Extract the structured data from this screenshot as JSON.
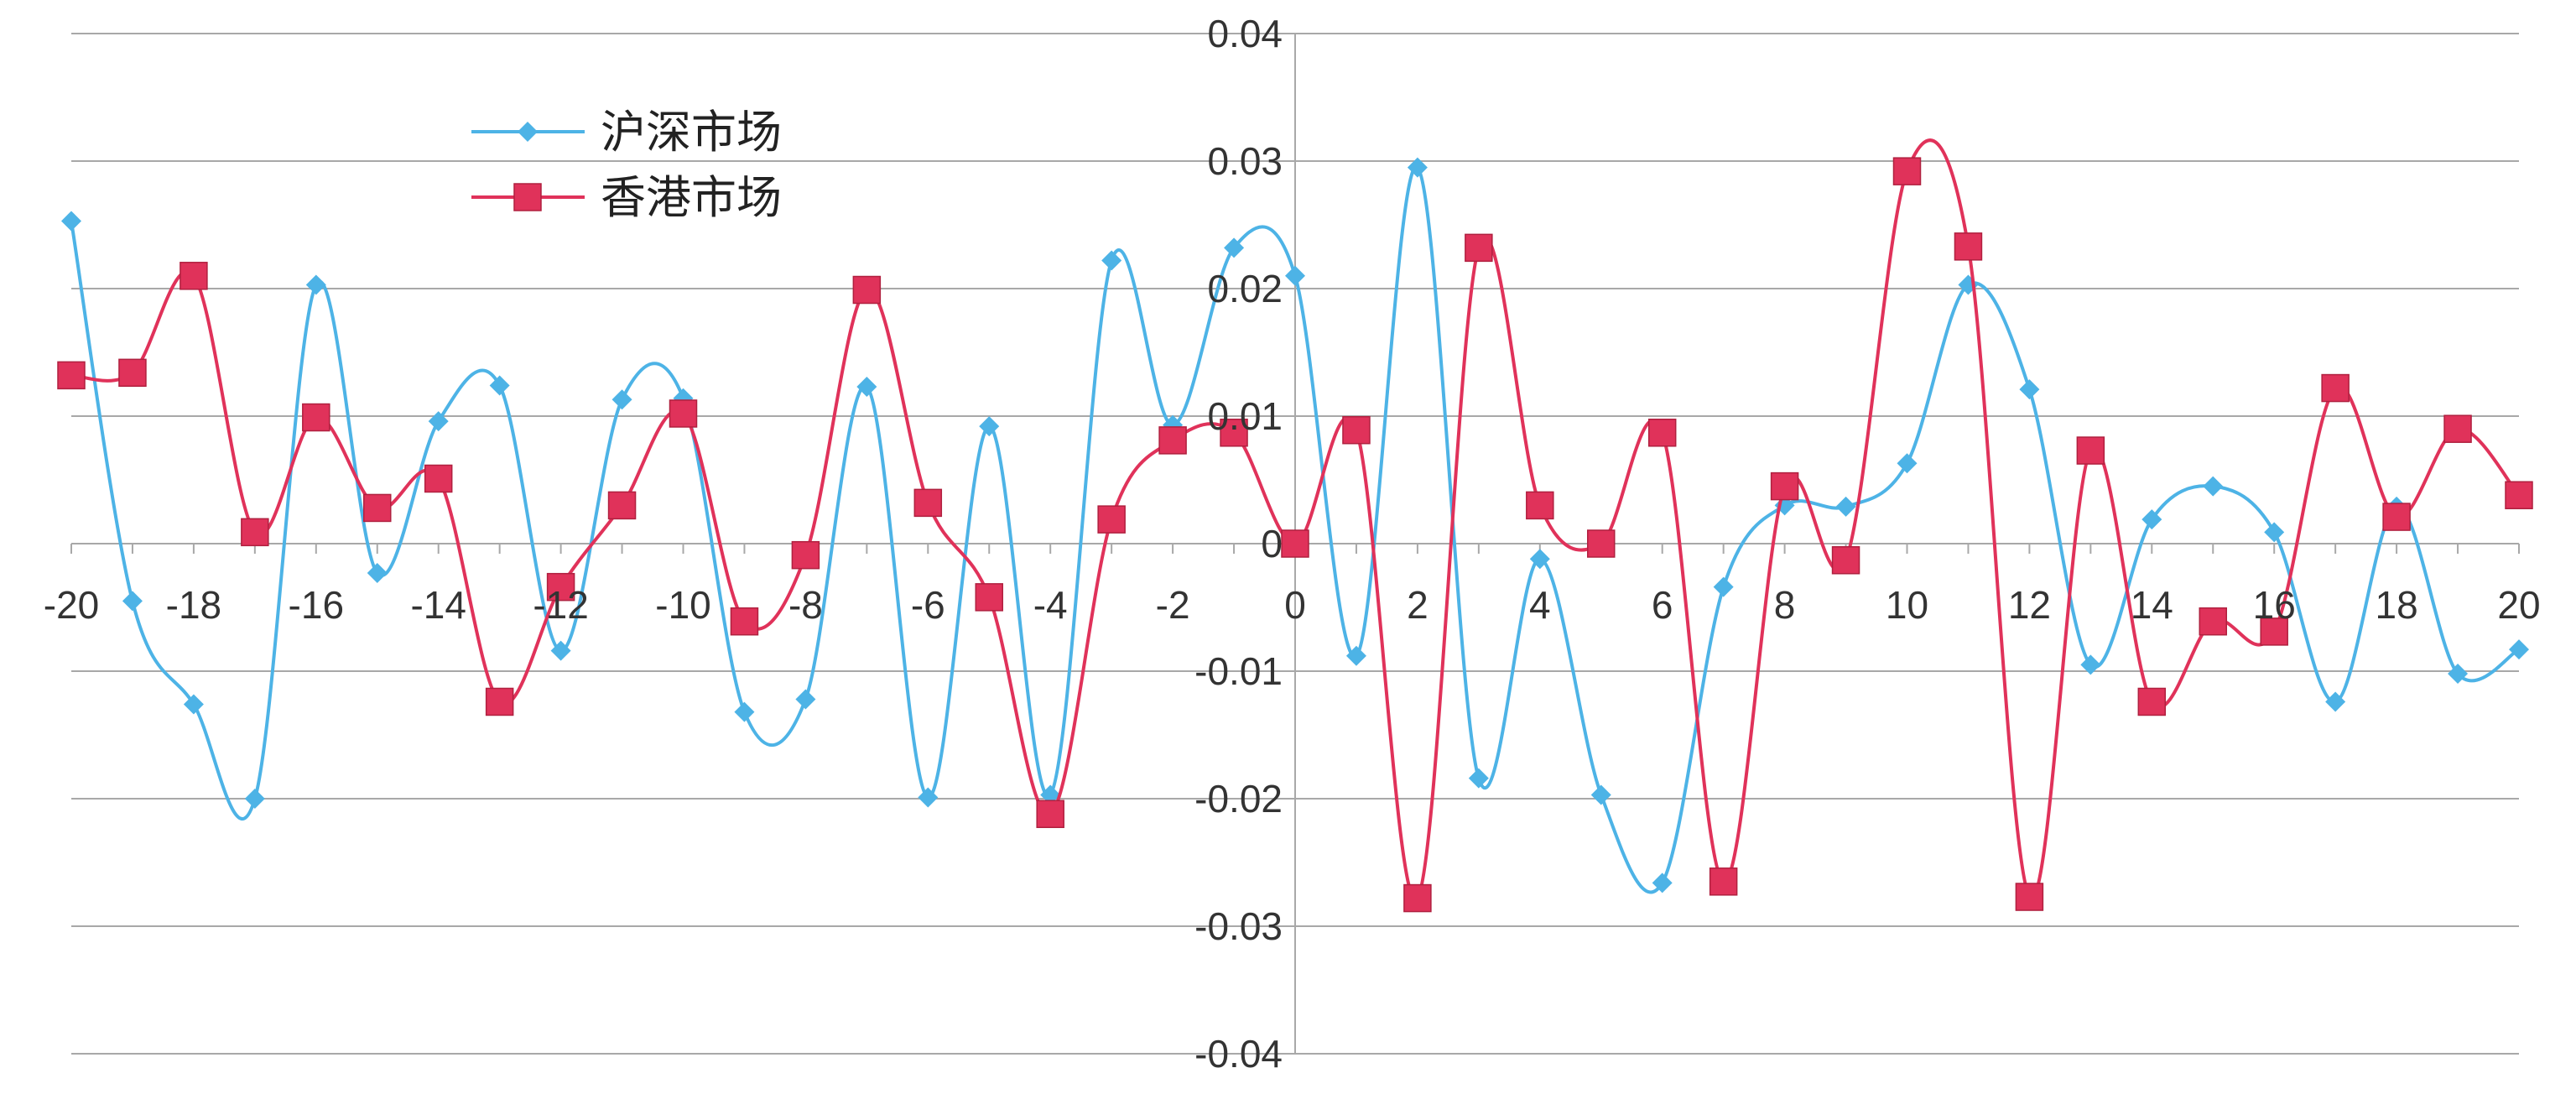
{
  "chart_data": {
    "type": "line",
    "title": "",
    "xlabel": "",
    "ylabel": "",
    "xlim": [
      -20,
      20
    ],
    "ylim": [
      -0.04,
      0.04
    ],
    "x_ticks": [
      "-20",
      "-18",
      "-16",
      "-14",
      "-12",
      "-10",
      "-8",
      "-6",
      "-4",
      "-2",
      "0",
      "2",
      "4",
      "6",
      "8",
      "10",
      "12",
      "14",
      "16",
      "18",
      "20"
    ],
    "y_ticks": [
      "-0.04",
      "-0.03",
      "-0.02",
      "-0.01",
      "0",
      "0.01",
      "0.02",
      "0.03",
      "0.04"
    ],
    "grid": "horizontal",
    "legend_position": "top-left",
    "x": [
      -20,
      -19,
      -18,
      -17,
      -16,
      -15,
      -14,
      -13,
      -12,
      -11,
      -10,
      -9,
      -8,
      -7,
      -6,
      -5,
      -4,
      -3,
      -2,
      -1,
      0,
      1,
      2,
      3,
      4,
      5,
      6,
      7,
      8,
      9,
      10,
      11,
      12,
      13,
      14,
      15,
      16,
      17,
      18,
      19,
      20
    ],
    "series": [
      {
        "name": "沪深市场",
        "color": "#4db3e6",
        "marker": "diamond",
        "values": [
          0.0253,
          -0.0045,
          -0.0126,
          -0.02,
          0.0203,
          -0.0023,
          0.0096,
          0.0124,
          -0.0084,
          0.0113,
          0.0114,
          -0.0132,
          -0.0122,
          0.0123,
          -0.0199,
          0.0092,
          -0.0197,
          0.0222,
          0.0093,
          0.0232,
          0.021,
          -0.0088,
          0.0295,
          -0.0184,
          -0.0012,
          -0.0197,
          -0.0266,
          -0.0034,
          0.003,
          0.0029,
          0.0063,
          0.0203,
          0.0121,
          -0.0095,
          0.0019,
          0.0045,
          0.0009,
          -0.0124,
          0.0029,
          -0.0102,
          -0.0083
        ]
      },
      {
        "name": "香港市场",
        "color": "#e0325a",
        "marker": "square",
        "values": [
          0.0132,
          0.0134,
          0.021,
          0.0009,
          0.0099,
          0.0028,
          0.0051,
          -0.0124,
          -0.0034,
          0.003,
          0.0102,
          -0.0061,
          -0.0009,
          0.0199,
          0.0032,
          -0.0042,
          -0.0212,
          0.0019,
          0.0081,
          0.0087,
          0.0,
          0.0089,
          -0.0278,
          0.0232,
          0.003,
          0.0,
          0.0087,
          -0.0265,
          0.0045,
          -0.0013,
          0.0292,
          0.0233,
          -0.0277,
          0.0073,
          -0.0124,
          -0.0061,
          -0.0069,
          0.0122,
          0.0021,
          0.009,
          0.0038
        ]
      }
    ]
  }
}
